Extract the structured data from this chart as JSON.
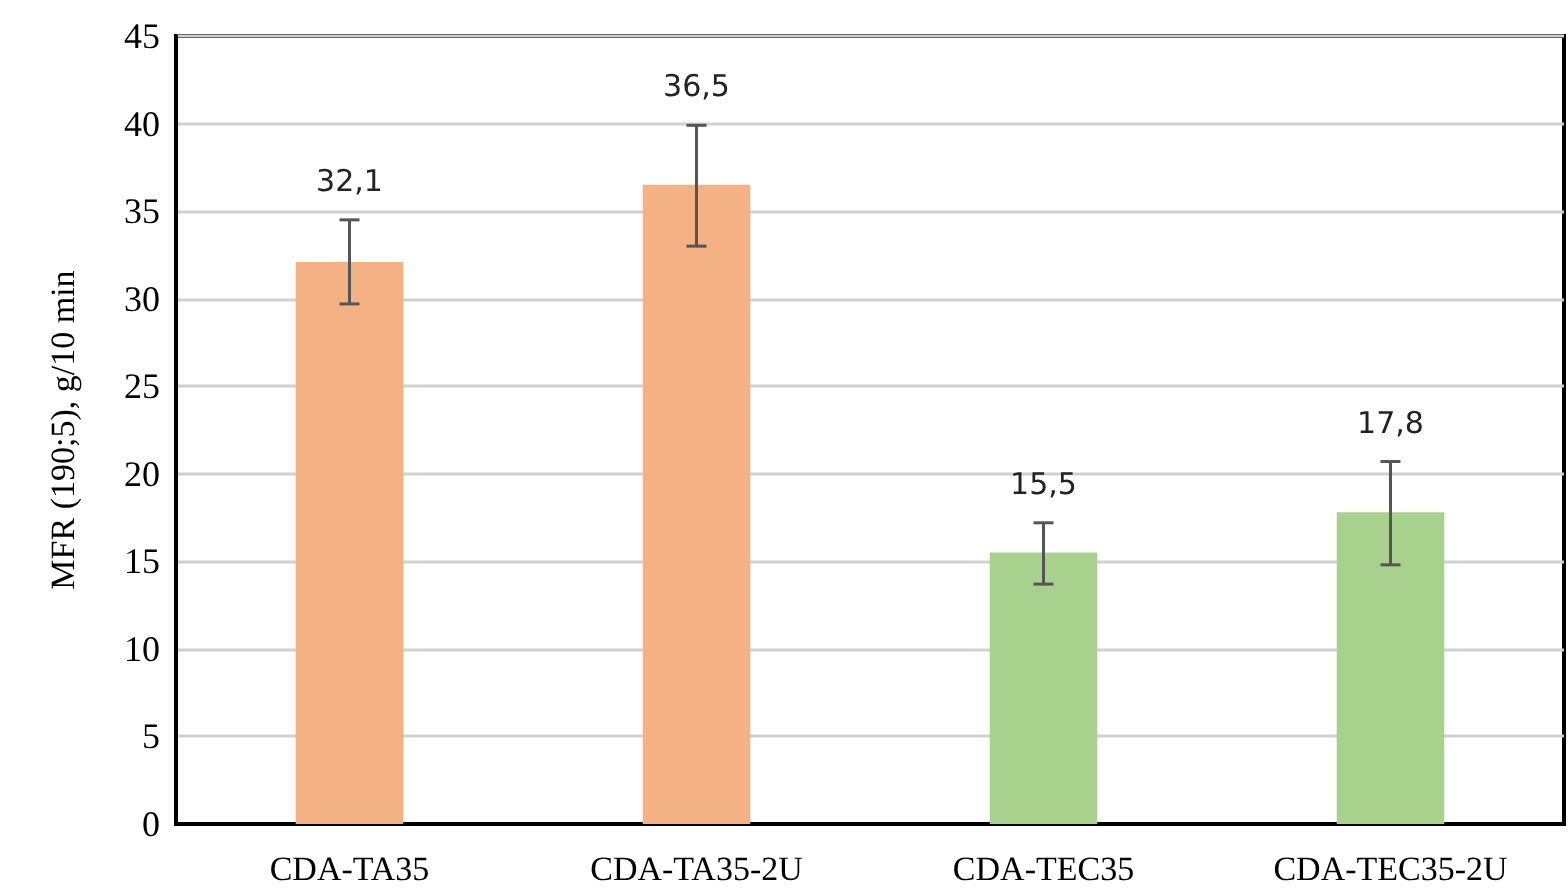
{
  "chart_data": {
    "type": "bar",
    "ylabel": "MFR (190;5), g/10 min",
    "categories": [
      "CDA-TA35",
      "CDA-TA35-2U",
      "CDA-TEC35",
      "CDA-TEC35-2U"
    ],
    "values": [
      32.1,
      36.5,
      15.5,
      17.8
    ],
    "colors": [
      "#f4b183",
      "#f4b183",
      "#a9d18e",
      "#a9d18e"
    ],
    "value_labels": [
      "32,1",
      "36,5",
      "15,5",
      "17,8"
    ],
    "errors": [
      [
        29.7,
        34.5
      ],
      [
        33.0,
        39.9
      ],
      [
        13.7,
        17.2
      ],
      [
        14.8,
        20.7
      ]
    ],
    "ylim": [
      0,
      45
    ],
    "yticks": [
      0,
      5,
      10,
      15,
      20,
      25,
      30,
      35,
      40,
      45
    ],
    "grid": "y"
  }
}
